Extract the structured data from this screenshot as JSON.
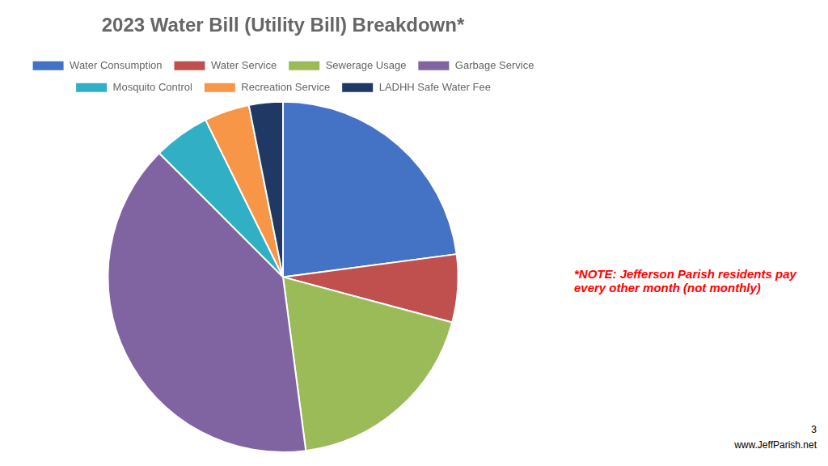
{
  "chart_data": {
    "type": "pie",
    "title": "2023 Water Bill (Utility Bill) Breakdown*",
    "categories": [
      "Water Consumption",
      "Water Service",
      "Sewerage Usage",
      "Garbage Service",
      "Mosquito Control",
      "Recreation Service",
      "LADHH Safe Water Fee"
    ],
    "values": [
      22,
      6,
      18,
      38,
      5,
      4,
      3
    ],
    "colors": [
      "#4472c4",
      "#c0504d",
      "#9bbb59",
      "#8064a2",
      "#31b0c5",
      "#f79646",
      "#1f3864"
    ],
    "legend": "top",
    "annotations": [
      {
        "text": "*NOTE: Jefferson Parish residents pay\nevery other month (not monthly)",
        "color": "#ff0000"
      },
      {
        "text": "3"
      },
      {
        "text": "www.JeffParish.net"
      }
    ]
  }
}
